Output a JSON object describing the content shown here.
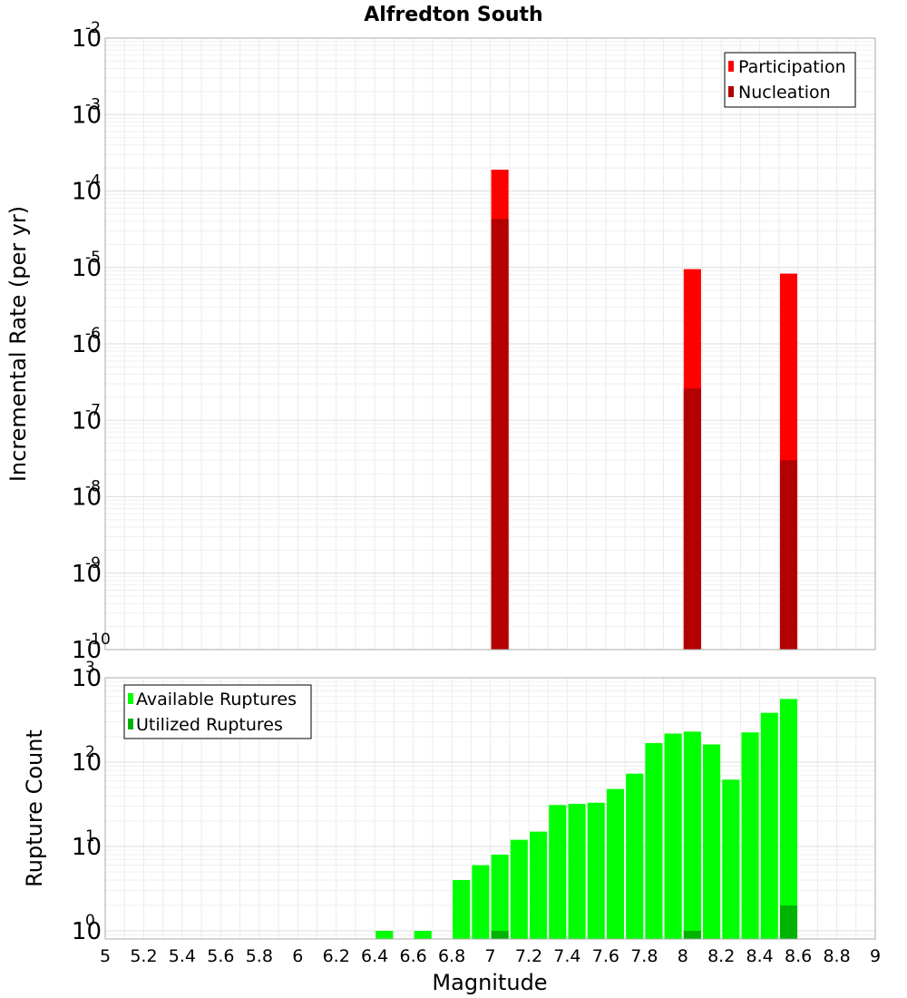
{
  "chart_data": [
    {
      "type": "bar",
      "title": "Alfredton South",
      "xlabel": "",
      "ylabel": "Incremental Rate (per yr)",
      "xlim": [
        5,
        9
      ],
      "ylim": [
        1e-10,
        0.01
      ],
      "yscale": "log",
      "grid": true,
      "legend": "top-right",
      "bar_width": 0.09,
      "yticks": [
        {
          "base": "10",
          "exp": "-10",
          "value": 1e-10
        },
        {
          "base": "10",
          "exp": "-9",
          "value": 1e-09
        },
        {
          "base": "10",
          "exp": "-8",
          "value": 1e-08
        },
        {
          "base": "10",
          "exp": "-7",
          "value": 1e-07
        },
        {
          "base": "10",
          "exp": "-6",
          "value": 1e-06
        },
        {
          "base": "10",
          "exp": "-5",
          "value": 1e-05
        },
        {
          "base": "10",
          "exp": "-4",
          "value": 0.0001
        },
        {
          "base": "10",
          "exp": "-3",
          "value": 0.001
        },
        {
          "base": "10",
          "exp": "-2",
          "value": 0.01
        }
      ],
      "series": [
        {
          "name": "Participation",
          "color": "#ff0000",
          "x": [
            7.05,
            8.05,
            8.55
          ],
          "values": [
            0.00019,
            9.5e-06,
            8.3e-06
          ]
        },
        {
          "name": "Nucleation",
          "color": "#b30000",
          "x": [
            7.05,
            8.05,
            8.55
          ],
          "values": [
            4.3e-05,
            2.6e-07,
            3e-08
          ]
        }
      ]
    },
    {
      "type": "bar",
      "title": "",
      "xlabel": "Magnitude",
      "ylabel": "Rupture Count",
      "xlim": [
        5,
        9
      ],
      "ylim": [
        0.8,
        1000
      ],
      "yscale": "log",
      "grid": true,
      "legend": "top-left",
      "bar_width": 0.09,
      "xticks": [
        "5",
        "5.2",
        "5.4",
        "5.6",
        "5.8",
        "6",
        "6.2",
        "6.4",
        "6.6",
        "6.8",
        "7",
        "7.2",
        "7.4",
        "7.6",
        "7.8",
        "8",
        "8.2",
        "8.4",
        "8.6",
        "8.8",
        "9"
      ],
      "yticks": [
        {
          "base": "10",
          "exp": "0",
          "value": 1
        },
        {
          "base": "10",
          "exp": "1",
          "value": 10
        },
        {
          "base": "10",
          "exp": "2",
          "value": 100
        },
        {
          "base": "10",
          "exp": "3",
          "value": 1000
        }
      ],
      "series": [
        {
          "name": "Available Ruptures",
          "color": "#00ff00",
          "x": [
            6.45,
            6.65,
            6.85,
            6.95,
            7.05,
            7.15,
            7.25,
            7.35,
            7.45,
            7.55,
            7.65,
            7.75,
            7.85,
            7.95,
            8.05,
            8.15,
            8.25,
            8.35,
            8.45,
            8.55
          ],
          "values": [
            1,
            1,
            4,
            6,
            8,
            12,
            15,
            31,
            32,
            33,
            48,
            73,
            168,
            218,
            230,
            162,
            62,
            225,
            384,
            560
          ]
        },
        {
          "name": "Utilized Ruptures",
          "color": "#00b300",
          "x": [
            7.05,
            8.05,
            8.55
          ],
          "values": [
            1,
            1,
            2
          ]
        }
      ]
    }
  ]
}
